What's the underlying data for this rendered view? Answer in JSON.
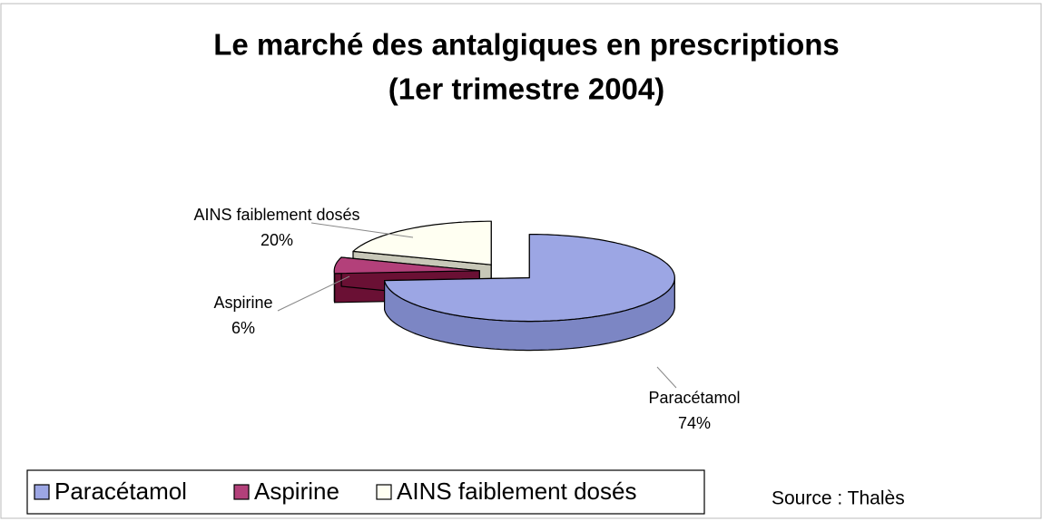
{
  "chart_data": {
    "type": "pie",
    "title": [
      "Le marché des antalgiques en prescriptions",
      "(1er trimestre 2004)"
    ],
    "categories": [
      "Paracétamol",
      "Aspirine",
      "AINS faiblement dosés"
    ],
    "values": [
      74,
      6,
      20
    ],
    "value_labels": [
      "74%",
      "6%",
      "20%"
    ],
    "colors": [
      "#9ca6e4",
      "#b3407a",
      "#fffff2"
    ],
    "side_colors": [
      "#7c86c4",
      "#6a1034",
      "#c8c8b8"
    ],
    "legend": "bottom-left",
    "source": "Source : Thalès"
  }
}
